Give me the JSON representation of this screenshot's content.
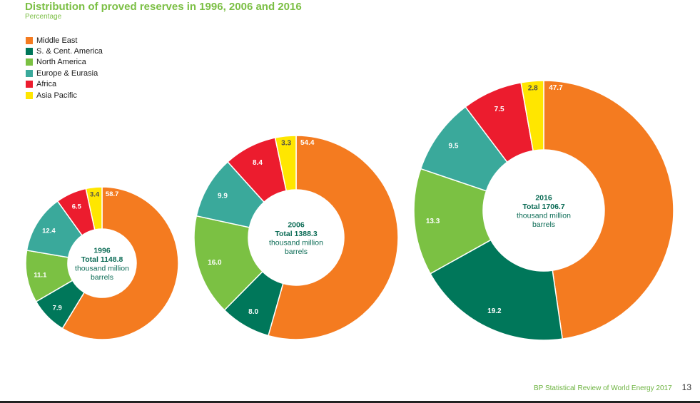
{
  "page": {
    "title": "Distribution of proved reserves in 1996, 2006 and 2016",
    "subtitle": "Percentage"
  },
  "colors": {
    "middle_east": "#f47b20",
    "s_cent_america": "#00775a",
    "north_america": "#7bc143",
    "europe_eurasia": "#3aa99b",
    "africa": "#ec1c2e",
    "asia_pacific": "#ffe600",
    "title": "#7bbf44",
    "center_text": "#0b6b55"
  },
  "legend": [
    {
      "label": "Middle East",
      "color": "#f47b20"
    },
    {
      "label": "S. & Cent. America",
      "color": "#00775a"
    },
    {
      "label": "North America",
      "color": "#7bc143"
    },
    {
      "label": "Europe & Eurasia",
      "color": "#3aa99b"
    },
    {
      "label": "Africa",
      "color": "#ec1c2e"
    },
    {
      "label": "Asia Pacific",
      "color": "#ffe600"
    }
  ],
  "chart_data": [
    {
      "type": "pie",
      "year": "1996",
      "total": "Total 1148.8",
      "unit_line1": "thousand million",
      "unit_line2": "barrels",
      "categories": [
        "Middle East",
        "S. & Cent. America",
        "North America",
        "Europe & Eurasia",
        "Africa",
        "Asia Pacific"
      ],
      "values": [
        58.7,
        7.9,
        11.1,
        12.4,
        6.5,
        3.4
      ],
      "labels": [
        "58.7",
        "7.9",
        "11.1",
        "12.4",
        "6.5",
        "3.4"
      ]
    },
    {
      "type": "pie",
      "year": "2006",
      "total": "Total 1388.3",
      "unit_line1": "thousand million",
      "unit_line2": "barrels",
      "categories": [
        "Middle East",
        "S. & Cent. America",
        "North America",
        "Europe & Eurasia",
        "Africa",
        "Asia Pacific"
      ],
      "values": [
        54.4,
        8.0,
        16.0,
        9.9,
        8.4,
        3.3
      ],
      "labels": [
        "54.4",
        "8.0",
        "16.0",
        "9.9",
        "8.4",
        "3.3"
      ]
    },
    {
      "type": "pie",
      "year": "2016",
      "total": "Total 1706.7",
      "unit_line1": "thousand million",
      "unit_line2": "barrels",
      "categories": [
        "Middle East",
        "S. & Cent. America",
        "North America",
        "Europe & Eurasia",
        "Africa",
        "Asia Pacific"
      ],
      "values": [
        47.7,
        19.2,
        13.3,
        9.5,
        7.5,
        2.8
      ],
      "labels": [
        "47.7",
        "19.2",
        "13.3",
        "9.5",
        "7.5",
        "2.8"
      ]
    }
  ],
  "footer": {
    "text": "BP Statistical Review of World Energy 2017",
    "page_number": "13"
  }
}
